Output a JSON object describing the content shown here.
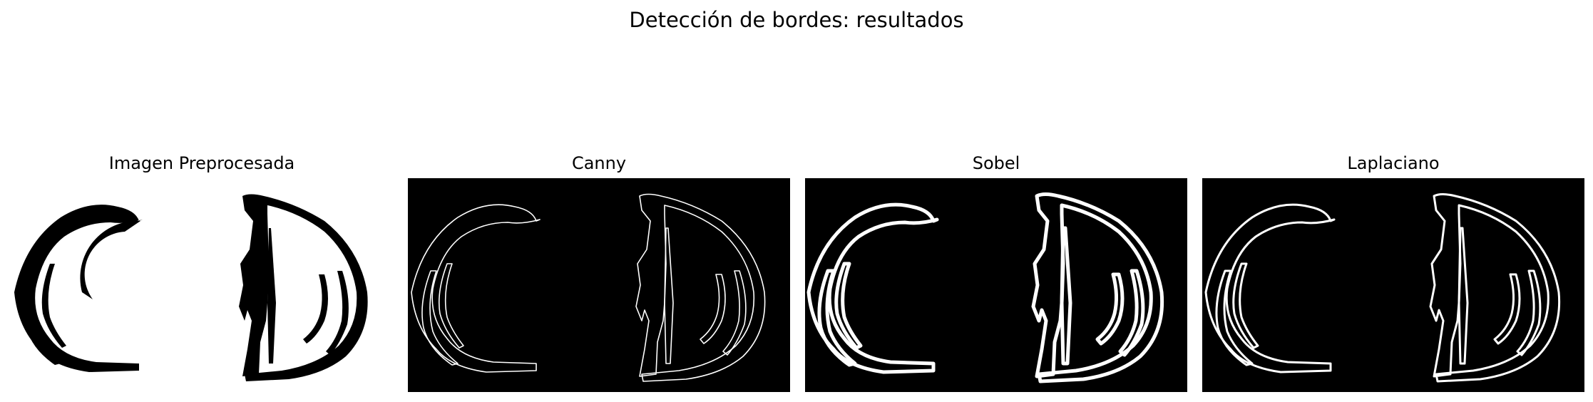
{
  "figure": {
    "title": "Detección de bordes: resultados"
  },
  "panels": [
    {
      "title": "Imagen Preprocesada",
      "mode": "preprocessed"
    },
    {
      "title": "Canny",
      "mode": "canny"
    },
    {
      "title": "Sobel",
      "mode": "sobel"
    },
    {
      "title": "Laplaciano",
      "mode": "laplacian"
    }
  ],
  "colors": {
    "background": "#ffffff",
    "image_bg": "#000000",
    "edge": "#ffffff",
    "ink": "#000000"
  }
}
